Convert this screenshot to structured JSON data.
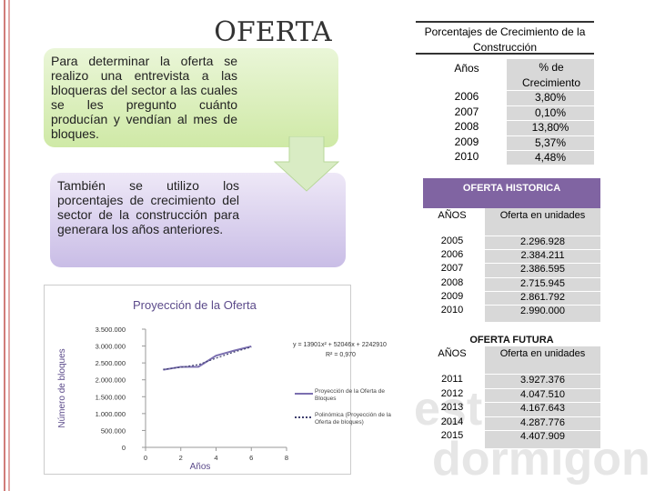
{
  "slide": {
    "title": "OFERTA",
    "box1": "Para determinar la oferta se realizo una entrevista a las bloqueras del sector a las cuales se les pregunto cuánto producían y vendían al mes de bloques.",
    "box2": "También se utilizo los porcentajes de crecimiento del sector de la construcción para generara los años anteriores.",
    "watermark": [
      "est",
      "dormigon"
    ]
  },
  "growth_table": {
    "title": "Porcentajes de Crecimiento de la Construcción",
    "headers": [
      "Años",
      "% de Crecimiento"
    ],
    "rows": [
      [
        "2006",
        "3,80%"
      ],
      [
        "2007",
        "0,10%"
      ],
      [
        "2008",
        "13,80%"
      ],
      [
        "2009",
        "5,37%"
      ],
      [
        "2010",
        "4,48%"
      ]
    ]
  },
  "historic_table": {
    "title": "OFERTA HISTORICA",
    "headers": [
      "AÑOS",
      "Oferta en unidades"
    ],
    "rows": [
      [
        "2005",
        "2.296.928"
      ],
      [
        "2006",
        "2.384.211"
      ],
      [
        "2007",
        "2.386.595"
      ],
      [
        "2008",
        "2.715.945"
      ],
      [
        "2009",
        "2.861.792"
      ],
      [
        "2010",
        "2.990.000"
      ]
    ]
  },
  "future_table": {
    "title": "OFERTA FUTURA",
    "headers": [
      "AÑOS",
      "Oferta en unidades"
    ],
    "rows": [
      [
        "2011",
        "3.927.376"
      ],
      [
        "2012",
        "4.047.510"
      ],
      [
        "2013",
        "4.167.643"
      ],
      [
        "2014",
        "4.287.776"
      ],
      [
        "2015",
        "4.407.909"
      ]
    ]
  },
  "chart_data": {
    "type": "line",
    "title": "Proyección de la Oferta",
    "x_label": "Años",
    "y_label": "Número de bloques",
    "equation": "y = 13901x² + 52046x + 2242910",
    "r_squared": "R² = 0,970",
    "x": [
      1,
      2,
      3,
      4,
      5,
      6
    ],
    "series": [
      {
        "name": "Proyección de la Oferta de Bloques",
        "color": "#7b6fb0",
        "dash": false,
        "values": [
          2296928,
          2384211,
          2386595,
          2715945,
          2861792,
          2990000
        ]
      },
      {
        "name": "Polinómica (Proyección de la Oferta de bloques)",
        "color": "#3f3f6e",
        "dash": true,
        "values": [
          2310000,
          2370000,
          2450000,
          2640000,
          2820000,
          2970000
        ]
      }
    ],
    "xlim": [
      0,
      8
    ],
    "xticks": [
      0,
      2,
      4,
      6,
      8
    ],
    "ylim": [
      0,
      3500000
    ],
    "yticks": [
      0,
      {
        "value": 500000,
        "label": "500.000"
      },
      {
        "value": 1000000,
        "label": "1.000.000"
      },
      {
        "value": 1500000,
        "label": "1.500.000"
      },
      {
        "value": 2000000,
        "label": "2.000.000"
      },
      {
        "value": 2500000,
        "label": "2.500.000"
      },
      {
        "value": 3000000,
        "label": "3.000.000"
      },
      {
        "value": 3500000,
        "label": "3.500.000"
      }
    ]
  }
}
